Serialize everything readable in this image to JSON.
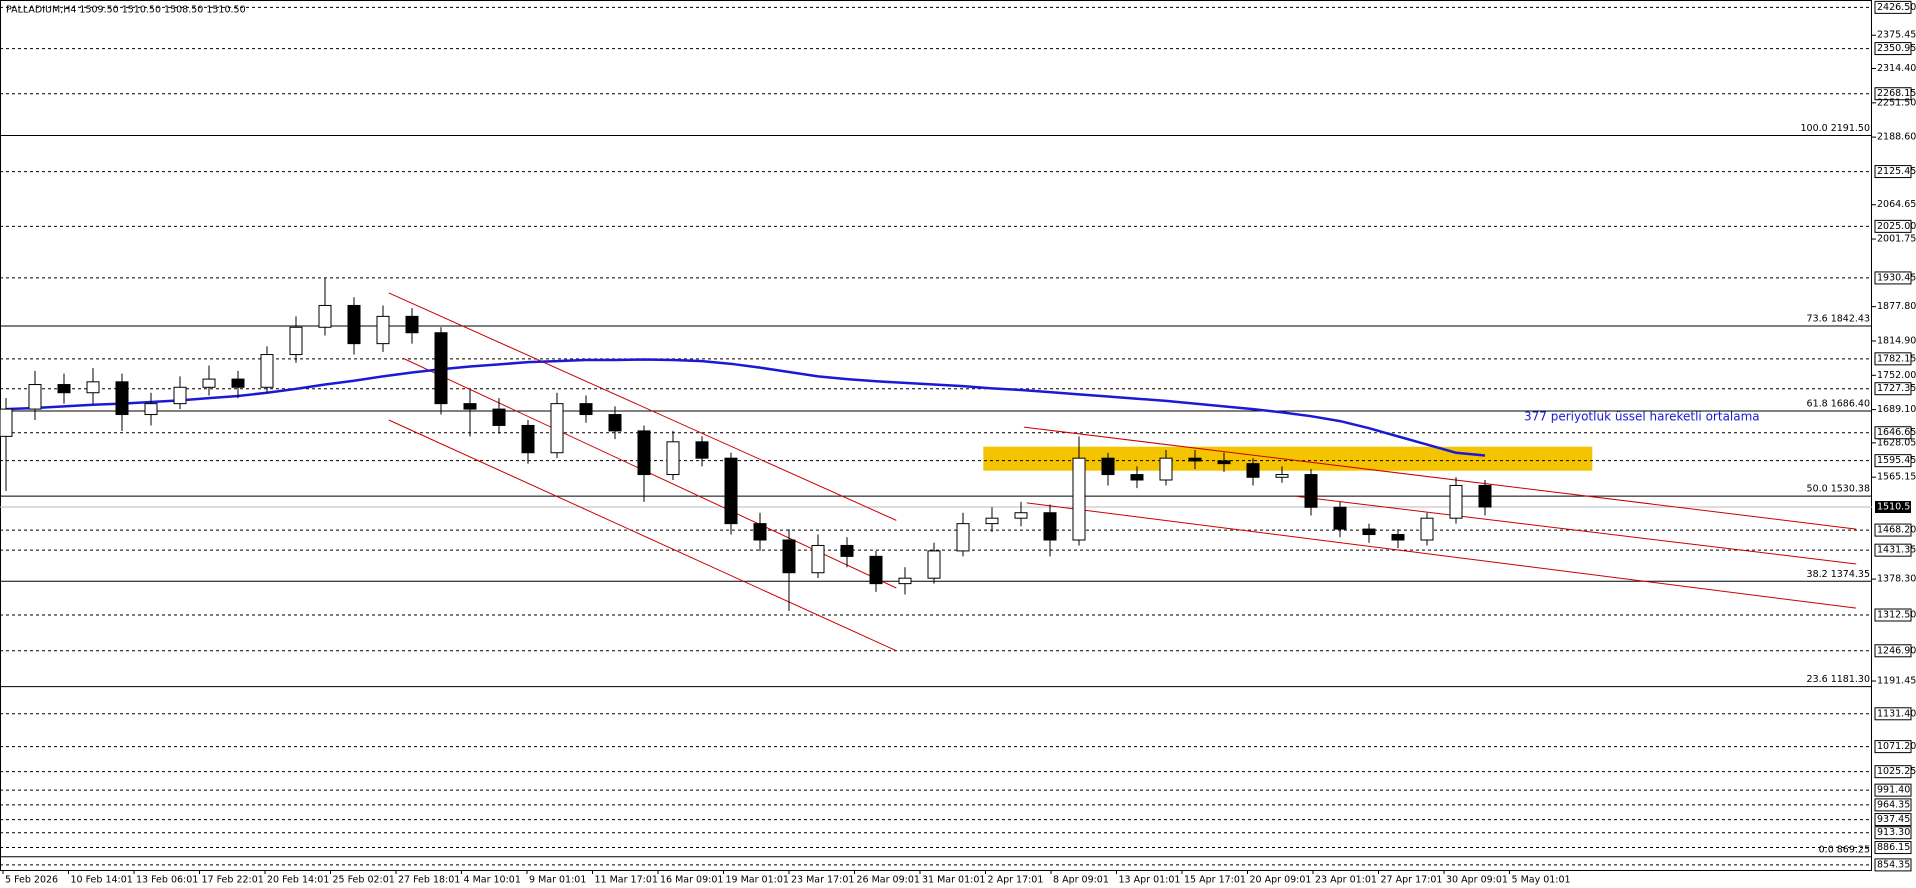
{
  "chart_data": {
    "type": "candlestick",
    "title": "PALLADIUM,H4  1509.50 1510.50 1508.50 1510.50",
    "annotation": "377 periyotluk üssel hareketli ortalama",
    "ylim": [
      845,
      2440
    ],
    "x_labels": [
      "5 Feb 2026",
      "10 Feb 14:01",
      "13 Feb 06:01",
      "17 Feb 22:01",
      "20 Feb 14:01",
      "25 Feb 02:01",
      "27 Feb 18:01",
      "4 Mar 10:01",
      "9 Mar 01:01",
      "11 Mar 17:01",
      "16 Mar 09:01",
      "19 Mar 01:01",
      "23 Mar 17:01",
      "26 Mar 09:01",
      "31 Mar 01:01",
      "2 Apr 17:01",
      "8 Apr 09:01",
      "13 Apr 01:01",
      "15 Apr 17:01",
      "20 Apr 09:01",
      "23 Apr 01:01",
      "27 Apr 17:01",
      "30 Apr 09:01",
      "5 May 01:01"
    ],
    "ohlc": {
      "open": [
        1640,
        1690,
        1735,
        1720,
        1740,
        1680,
        1700,
        1730,
        1745,
        1730,
        1790,
        1840,
        1880,
        1810,
        1860,
        1830,
        1700,
        1690,
        1660,
        1610,
        1700,
        1680,
        1650,
        1570,
        1630,
        1600,
        1480,
        1450,
        1390,
        1440,
        1420,
        1370,
        1380,
        1430,
        1480,
        1490,
        1500,
        1450,
        1600,
        1570,
        1560,
        1600,
        1595,
        1590,
        1565,
        1570,
        1510,
        1470,
        1460,
        1450,
        1490,
        1550
      ],
      "high": [
        1710,
        1760,
        1755,
        1765,
        1755,
        1720,
        1750,
        1770,
        1760,
        1805,
        1860,
        1930,
        1895,
        1880,
        1875,
        1840,
        1725,
        1710,
        1670,
        1720,
        1715,
        1695,
        1660,
        1650,
        1640,
        1610,
        1500,
        1470,
        1460,
        1455,
        1430,
        1400,
        1445,
        1500,
        1510,
        1520,
        1515,
        1640,
        1610,
        1585,
        1615,
        1615,
        1610,
        1600,
        1585,
        1580,
        1520,
        1480,
        1470,
        1500,
        1565,
        1560
      ],
      "low": [
        1540,
        1670,
        1700,
        1700,
        1650,
        1660,
        1690,
        1715,
        1710,
        1720,
        1775,
        1825,
        1790,
        1795,
        1810,
        1680,
        1640,
        1645,
        1590,
        1600,
        1665,
        1635,
        1520,
        1560,
        1585,
        1460,
        1430,
        1320,
        1380,
        1400,
        1355,
        1350,
        1370,
        1420,
        1465,
        1475,
        1420,
        1440,
        1550,
        1545,
        1550,
        1580,
        1575,
        1550,
        1555,
        1495,
        1455,
        1445,
        1435,
        1440,
        1480,
        1495
      ],
      "close": [
        1690,
        1735,
        1720,
        1740,
        1680,
        1700,
        1730,
        1745,
        1730,
        1790,
        1840,
        1880,
        1810,
        1860,
        1830,
        1700,
        1690,
        1660,
        1610,
        1700,
        1680,
        1650,
        1570,
        1630,
        1600,
        1480,
        1450,
        1390,
        1440,
        1420,
        1370,
        1380,
        1430,
        1480,
        1490,
        1500,
        1450,
        1600,
        1570,
        1560,
        1600,
        1595,
        1590,
        1565,
        1570,
        1510,
        1470,
        1460,
        1450,
        1490,
        1550,
        1510.5
      ]
    },
    "series": [
      {
        "name": "EMA 377",
        "color": "#1a1ad6",
        "values": [
          1690,
          1692,
          1695,
          1698,
          1700,
          1703,
          1706,
          1710,
          1714,
          1720,
          1727,
          1735,
          1742,
          1750,
          1757,
          1763,
          1768,
          1772,
          1776,
          1778,
          1780,
          1780,
          1781,
          1780,
          1778,
          1773,
          1766,
          1758,
          1750,
          1745,
          1741,
          1738,
          1735,
          1732,
          1728,
          1725,
          1721,
          1717,
          1713,
          1709,
          1705,
          1700,
          1695,
          1690,
          1684,
          1677,
          1668,
          1655,
          1640,
          1625,
          1610,
          1605
        ]
      }
    ],
    "trendlines": [
      {
        "color": "#cc0000",
        "start": [
          14.2,
          1903
        ],
        "end": [
          31.7,
          1486
        ]
      },
      {
        "color": "#cc0000",
        "start": [
          14.7,
          1783
        ],
        "end": [
          31.7,
          1362
        ]
      },
      {
        "color": "#cc0000",
        "start": [
          14.2,
          1670
        ],
        "end": [
          31.7,
          1247
        ]
      },
      {
        "color": "#cc0000",
        "start": [
          36.1,
          1657
        ],
        "end": [
          64.8,
          1470
        ]
      },
      {
        "color": "#cc0000",
        "start": [
          45.5,
          1530
        ],
        "end": [
          64.8,
          1406
        ]
      },
      {
        "color": "#cc0000",
        "start": [
          36.2,
          1518
        ],
        "end": [
          64.8,
          1325
        ]
      }
    ],
    "zone": {
      "color": "#f5c400",
      "start": 34.7,
      "end": 55.7,
      "low": 1577,
      "high": 1621
    },
    "current_price": {
      "value": 1510.5,
      "label": "1510.50"
    },
    "levels": [
      {
        "value": 2426.5,
        "label": "2426.50"
      },
      {
        "value": 2350.95,
        "label": "2350.95"
      },
      {
        "value": 2268.15,
        "label": "2268.15"
      },
      {
        "value": 2125.45,
        "label": "2125.45"
      },
      {
        "value": 2025,
        "label": "2025.00"
      },
      {
        "value": 1930.45,
        "label": "1930.45"
      },
      {
        "value": 1782.15,
        "label": "1782.15"
      },
      {
        "value": 1727.35,
        "label": "1727.35"
      },
      {
        "value": 1646.65,
        "label": "1646.65"
      },
      {
        "value": 1595.45,
        "label": "1595.45"
      },
      {
        "value": 1468.2,
        "label": "1468.20"
      },
      {
        "value": 1431.35,
        "label": "1431.35"
      },
      {
        "value": 1312.5,
        "label": "1312.50"
      },
      {
        "value": 1246.9,
        "label": "1246.90"
      },
      {
        "value": 1131.4,
        "label": "1131.40"
      },
      {
        "value": 1071.2,
        "label": "1071.20"
      },
      {
        "value": 1025.25,
        "label": "1025.25"
      },
      {
        "value": 991.4,
        "label": "991.40"
      },
      {
        "value": 964.35,
        "label": "964.35"
      },
      {
        "value": 937.45,
        "label": "937.45"
      },
      {
        "value": 913.3,
        "label": "913.30"
      },
      {
        "value": 886.15,
        "label": "886.15"
      },
      {
        "value": 854.35,
        "label": "854.35"
      }
    ],
    "fib_levels": [
      {
        "value": 2191.5,
        "label": "100.0 2191.50"
      },
      {
        "value": 1842.43,
        "label": "73.6 1842.43"
      },
      {
        "value": 1686.4,
        "label": "61.8 1686.40"
      },
      {
        "value": 1530.38,
        "label": "50.0 1530.38"
      },
      {
        "value": 1374.35,
        "label": "38.2 1374.35"
      },
      {
        "value": 1181.3,
        "label": "23.6 1181.30"
      },
      {
        "value": 869.25,
        "label": "0.0 869.25"
      }
    ],
    "yticks": [
      {
        "value": 2375.45,
        "label": "2375.45"
      },
      {
        "value": 2314.4,
        "label": "2314.40"
      },
      {
        "value": 2251.5,
        "label": "2251.50"
      },
      {
        "value": 2188.6,
        "label": "2188.60"
      },
      {
        "value": 2064.65,
        "label": "2064.65"
      },
      {
        "value": 2001.75,
        "label": "2001.75"
      },
      {
        "value": 1877.8,
        "label": "1877.80"
      },
      {
        "value": 1814.9,
        "label": "1814.90"
      },
      {
        "value": 1752,
        "label": "1752.00"
      },
      {
        "value": 1689.1,
        "label": "1689.10"
      },
      {
        "value": 1628.05,
        "label": "1628.05"
      },
      {
        "value": 1565.15,
        "label": "1565.15"
      },
      {
        "value": 1378.3,
        "label": "1378.30"
      },
      {
        "value": 1191.45,
        "label": "1191.45"
      }
    ]
  }
}
